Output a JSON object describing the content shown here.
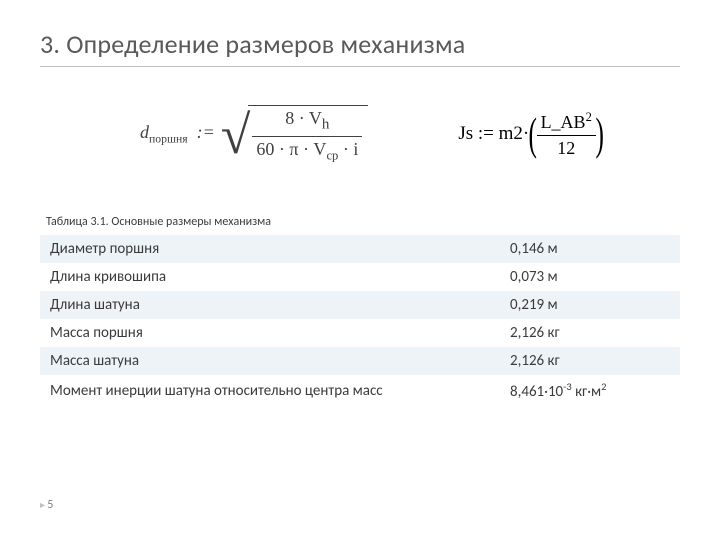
{
  "title": "3. Определение размеров механизма",
  "formula1": {
    "lhs_var": "d",
    "lhs_sub": "поршня",
    "assign": ":=",
    "num": "8 · V",
    "num_sub": "h",
    "den_a": "60 · π · V",
    "den_sub": "ср",
    "den_b": " · i"
  },
  "formula2": {
    "lhs": "Js",
    "assign": ":=",
    "factor": "m2·",
    "num_base": "L_AB",
    "num_exp": "2",
    "den": "12"
  },
  "caption": "Таблица 3.1. Основные размеры механизма",
  "table": {
    "rows": [
      {
        "label": "Диаметр поршня",
        "value": "0,146 м"
      },
      {
        "label": "Длина кривошипа",
        "value": "0,073 м"
      },
      {
        "label": "Длина шатуна",
        "value": "0,219 м"
      },
      {
        "label": "Масса поршня",
        "value": "2,126 кг"
      },
      {
        "label": "Масса шатуна",
        "value": "2,126 кг"
      },
      {
        "label": "Момент инерции шатуна относительно центра масс",
        "value_pre": "8,461·10",
        "value_exp": "-3",
        "value_post": " кг·м",
        "value_exp2": "2"
      }
    ]
  },
  "page_number": "5",
  "style": {
    "title_color": "#595959",
    "rule_color": "#bfbfbf",
    "row_stripe": "#eef3f8",
    "text_color": "#3b3b3b"
  }
}
